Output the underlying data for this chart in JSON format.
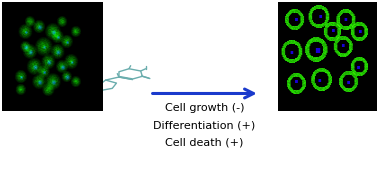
{
  "background_color": "#ffffff",
  "arrow_color": "#1a3acc",
  "text_lines": [
    "Cell growth (-)",
    "Differentiation (+)",
    "Cell death (+)"
  ],
  "text_fontsize": 8.0,
  "text_color": "#000000",
  "fig_width": 3.78,
  "fig_height": 1.72,
  "mol_color": "#6aadad",
  "mol_lw": 1.0
}
